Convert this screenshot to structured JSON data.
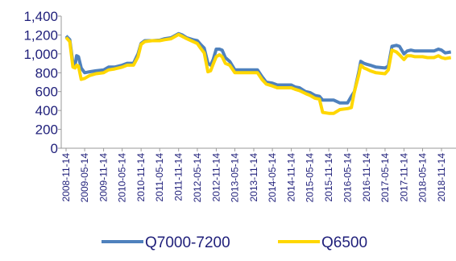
{
  "chart_data": {
    "type": "line",
    "title": "",
    "xlabel": "",
    "ylabel": "",
    "ylim": [
      0,
      1400
    ],
    "y_ticks": [
      "0",
      "200",
      "400",
      "600",
      "800",
      "1,000",
      "1,200",
      "1,400"
    ],
    "y_tick_values": [
      0,
      200,
      400,
      600,
      800,
      1000,
      1200,
      1400
    ],
    "x_ticks": [
      "2008-11-14",
      "2009-05-14",
      "2009-11-14",
      "2010-05-14",
      "2010-11-14",
      "2011-05-14",
      "2011-11-14",
      "2012-05-14",
      "2012-11-14",
      "2013-05-14",
      "2013-11-14",
      "2014-05-14",
      "2014-11-14",
      "2015-05-14",
      "2015-11-14",
      "2016-05-14",
      "2016-11-14",
      "2017-05-14",
      "2017-11-14",
      "2018-05-14",
      "2018-11-14"
    ],
    "x_range": [
      "2008-11-14",
      "2019-02-14"
    ],
    "grid": false,
    "legend_position": "bottom",
    "colors": {
      "Q7000-7200": "#4f81bd",
      "Q6500": "#ffd700"
    },
    "series": [
      {
        "name": "Q7000-7200",
        "points": [
          [
            "2008-11-14",
            1190
          ],
          [
            "2008-12-20",
            1150
          ],
          [
            "2009-01-20",
            900
          ],
          [
            "2009-02-10",
            880
          ],
          [
            "2009-02-25",
            980
          ],
          [
            "2009-03-15",
            970
          ],
          [
            "2009-04-10",
            850
          ],
          [
            "2009-05-14",
            800
          ],
          [
            "2009-07-01",
            810
          ],
          [
            "2009-09-01",
            820
          ],
          [
            "2009-11-14",
            830
          ],
          [
            "2010-01-01",
            860
          ],
          [
            "2010-03-01",
            860
          ],
          [
            "2010-05-14",
            880
          ],
          [
            "2010-07-01",
            900
          ],
          [
            "2010-09-01",
            900
          ],
          [
            "2010-10-15",
            1000
          ],
          [
            "2010-11-14",
            1110
          ],
          [
            "2010-12-20",
            1140
          ],
          [
            "2011-03-01",
            1140
          ],
          [
            "2011-05-14",
            1145
          ],
          [
            "2011-07-01",
            1160
          ],
          [
            "2011-09-01",
            1170
          ],
          [
            "2011-11-14",
            1215
          ],
          [
            "2011-12-20",
            1200
          ],
          [
            "2012-02-01",
            1170
          ],
          [
            "2012-04-01",
            1150
          ],
          [
            "2012-05-14",
            1140
          ],
          [
            "2012-06-15",
            1100
          ],
          [
            "2012-07-20",
            1060
          ],
          [
            "2012-08-25",
            900
          ],
          [
            "2012-09-20",
            880
          ],
          [
            "2012-10-15",
            940
          ],
          [
            "2012-11-14",
            1050
          ],
          [
            "2012-12-15",
            1050
          ],
          [
            "2013-01-10",
            1040
          ],
          [
            "2013-02-10",
            960
          ],
          [
            "2013-03-25",
            920
          ],
          [
            "2013-05-14",
            830
          ],
          [
            "2013-07-01",
            830
          ],
          [
            "2013-09-01",
            830
          ],
          [
            "2013-11-14",
            830
          ],
          [
            "2013-12-20",
            830
          ],
          [
            "2014-02-01",
            760
          ],
          [
            "2014-03-15",
            700
          ],
          [
            "2014-05-14",
            690
          ],
          [
            "2014-07-01",
            670
          ],
          [
            "2014-09-01",
            670
          ],
          [
            "2014-11-14",
            670
          ],
          [
            "2014-12-20",
            650
          ],
          [
            "2015-02-01",
            640
          ],
          [
            "2015-04-01",
            600
          ],
          [
            "2015-05-14",
            590
          ],
          [
            "2015-07-01",
            560
          ],
          [
            "2015-08-15",
            550
          ],
          [
            "2015-09-15",
            510
          ],
          [
            "2015-11-14",
            510
          ],
          [
            "2016-01-01",
            510
          ],
          [
            "2016-03-01",
            480
          ],
          [
            "2016-05-14",
            480
          ],
          [
            "2016-06-20",
            550
          ],
          [
            "2016-07-20",
            600
          ],
          [
            "2016-09-01",
            810
          ],
          [
            "2016-09-20",
            920
          ],
          [
            "2016-10-20",
            900
          ],
          [
            "2016-11-14",
            890
          ],
          [
            "2016-12-20",
            880
          ],
          [
            "2017-02-15",
            860
          ],
          [
            "2017-05-14",
            850
          ],
          [
            "2017-06-15",
            870
          ],
          [
            "2017-07-20",
            1080
          ],
          [
            "2017-09-01",
            1090
          ],
          [
            "2017-10-01",
            1080
          ],
          [
            "2017-11-14",
            1000
          ],
          [
            "2017-12-15",
            1030
          ],
          [
            "2018-01-20",
            1040
          ],
          [
            "2018-03-01",
            1030
          ],
          [
            "2018-05-14",
            1030
          ],
          [
            "2018-07-01",
            1030
          ],
          [
            "2018-09-01",
            1030
          ],
          [
            "2018-10-15",
            1050
          ],
          [
            "2018-11-14",
            1040
          ],
          [
            "2018-12-20",
            1010
          ],
          [
            "2019-02-14",
            1020
          ]
        ]
      },
      {
        "name": "Q6500",
        "points": [
          [
            "2008-11-14",
            1175
          ],
          [
            "2008-12-20",
            1130
          ],
          [
            "2009-01-20",
            860
          ],
          [
            "2009-02-10",
            850
          ],
          [
            "2009-02-25",
            880
          ],
          [
            "2009-03-15",
            870
          ],
          [
            "2009-04-10",
            730
          ],
          [
            "2009-05-14",
            740
          ],
          [
            "2009-07-01",
            770
          ],
          [
            "2009-09-01",
            790
          ],
          [
            "2009-11-14",
            800
          ],
          [
            "2010-01-01",
            830
          ],
          [
            "2010-03-01",
            840
          ],
          [
            "2010-05-14",
            860
          ],
          [
            "2010-07-01",
            880
          ],
          [
            "2010-09-01",
            880
          ],
          [
            "2010-10-15",
            970
          ],
          [
            "2010-11-14",
            1100
          ],
          [
            "2010-12-20",
            1130
          ],
          [
            "2011-03-01",
            1140
          ],
          [
            "2011-05-14",
            1140
          ],
          [
            "2011-07-01",
            1150
          ],
          [
            "2011-09-01",
            1160
          ],
          [
            "2011-11-14",
            1205
          ],
          [
            "2011-12-20",
            1185
          ],
          [
            "2012-02-01",
            1160
          ],
          [
            "2012-04-01",
            1130
          ],
          [
            "2012-05-14",
            1110
          ],
          [
            "2012-06-15",
            1060
          ],
          [
            "2012-07-20",
            1010
          ],
          [
            "2012-08-25",
            810
          ],
          [
            "2012-09-20",
            820
          ],
          [
            "2012-10-15",
            890
          ],
          [
            "2012-11-14",
            970
          ],
          [
            "2012-12-15",
            990
          ],
          [
            "2013-01-10",
            970
          ],
          [
            "2013-02-10",
            900
          ],
          [
            "2013-03-25",
            880
          ],
          [
            "2013-05-14",
            800
          ],
          [
            "2013-07-01",
            800
          ],
          [
            "2013-09-01",
            800
          ],
          [
            "2013-11-14",
            800
          ],
          [
            "2013-12-20",
            800
          ],
          [
            "2014-02-01",
            730
          ],
          [
            "2014-03-15",
            680
          ],
          [
            "2014-05-14",
            660
          ],
          [
            "2014-07-01",
            640
          ],
          [
            "2014-09-01",
            640
          ],
          [
            "2014-11-14",
            640
          ],
          [
            "2014-12-20",
            625
          ],
          [
            "2015-02-01",
            610
          ],
          [
            "2015-04-01",
            580
          ],
          [
            "2015-05-14",
            560
          ],
          [
            "2015-07-01",
            530
          ],
          [
            "2015-08-15",
            520
          ],
          [
            "2015-09-15",
            380
          ],
          [
            "2015-11-14",
            370
          ],
          [
            "2016-01-01",
            370
          ],
          [
            "2016-03-01",
            410
          ],
          [
            "2016-05-14",
            420
          ],
          [
            "2016-06-20",
            430
          ],
          [
            "2016-07-20",
            600
          ],
          [
            "2016-09-01",
            780
          ],
          [
            "2016-09-20",
            880
          ],
          [
            "2016-10-20",
            850
          ],
          [
            "2016-11-14",
            840
          ],
          [
            "2016-12-20",
            820
          ],
          [
            "2017-02-15",
            800
          ],
          [
            "2017-05-14",
            790
          ],
          [
            "2017-06-15",
            830
          ],
          [
            "2017-07-20",
            1040
          ],
          [
            "2017-09-01",
            1020
          ],
          [
            "2017-10-01",
            990
          ],
          [
            "2017-11-14",
            940
          ],
          [
            "2017-12-15",
            980
          ],
          [
            "2018-01-20",
            980
          ],
          [
            "2018-03-01",
            970
          ],
          [
            "2018-05-14",
            970
          ],
          [
            "2018-07-01",
            960
          ],
          [
            "2018-09-01",
            960
          ],
          [
            "2018-10-15",
            980
          ],
          [
            "2018-11-14",
            960
          ],
          [
            "2018-12-20",
            950
          ],
          [
            "2019-02-14",
            960
          ]
        ]
      }
    ]
  }
}
